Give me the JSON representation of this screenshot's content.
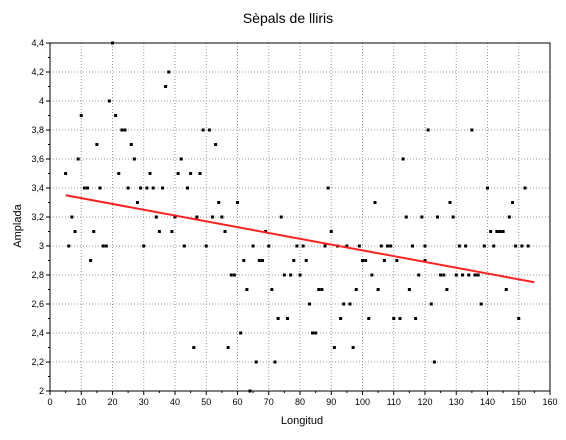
{
  "chart_data": {
    "type": "scatter",
    "title": "Sèpals de lliris",
    "xlabel": "Longitud",
    "ylabel": "Amplada",
    "xlim": [
      0,
      160
    ],
    "ylim": [
      2,
      4.4
    ],
    "x_ticks": [
      0,
      10,
      20,
      30,
      40,
      50,
      60,
      70,
      80,
      90,
      100,
      110,
      120,
      130,
      140,
      150,
      160
    ],
    "x_tick_labels": [
      "0",
      "10",
      "20",
      "30",
      "40",
      "50",
      "60",
      "70",
      "80",
      "90",
      "100",
      "110",
      "120",
      "130",
      "140",
      "150",
      "160"
    ],
    "y_ticks": [
      2,
      2.2,
      2.4,
      2.6,
      2.8,
      3,
      3.2,
      3.4,
      3.6,
      3.8,
      4,
      4.2,
      4.4
    ],
    "y_tick_labels": [
      "2",
      "2,2",
      "2,4",
      "2,6",
      "2,8",
      "3",
      "3,2",
      "3,4",
      "3,6",
      "3,8",
      "4",
      "4,2",
      "4,4"
    ],
    "grid": true,
    "point_color": "#000000",
    "trend_color": "#ff2020",
    "trendline": {
      "x": [
        5,
        155
      ],
      "y": [
        3.35,
        2.75
      ]
    },
    "points": [
      [
        5,
        3.5
      ],
      [
        6,
        3.0
      ],
      [
        7,
        3.2
      ],
      [
        8,
        3.1
      ],
      [
        9,
        3.6
      ],
      [
        10,
        3.9
      ],
      [
        11,
        3.4
      ],
      [
        12,
        3.4
      ],
      [
        13,
        2.9
      ],
      [
        14,
        3.1
      ],
      [
        15,
        3.7
      ],
      [
        16,
        3.4
      ],
      [
        17,
        3.0
      ],
      [
        18,
        3.0
      ],
      [
        19,
        4.0
      ],
      [
        20,
        4.4
      ],
      [
        21,
        3.9
      ],
      [
        22,
        3.5
      ],
      [
        23,
        3.8
      ],
      [
        24,
        3.8
      ],
      [
        25,
        3.4
      ],
      [
        26,
        3.7
      ],
      [
        27,
        3.6
      ],
      [
        28,
        3.3
      ],
      [
        29,
        3.4
      ],
      [
        30,
        3.0
      ],
      [
        31,
        3.4
      ],
      [
        32,
        3.5
      ],
      [
        33,
        3.4
      ],
      [
        34,
        3.2
      ],
      [
        35,
        3.1
      ],
      [
        36,
        3.4
      ],
      [
        37,
        4.1
      ],
      [
        38,
        4.2
      ],
      [
        39,
        3.1
      ],
      [
        40,
        3.2
      ],
      [
        41,
        3.5
      ],
      [
        42,
        3.6
      ],
      [
        43,
        3.0
      ],
      [
        44,
        3.4
      ],
      [
        45,
        3.5
      ],
      [
        46,
        2.3
      ],
      [
        47,
        3.2
      ],
      [
        48,
        3.5
      ],
      [
        49,
        3.8
      ],
      [
        50,
        3.0
      ],
      [
        51,
        3.8
      ],
      [
        52,
        3.2
      ],
      [
        53,
        3.7
      ],
      [
        54,
        3.3
      ],
      [
        55,
        3.2
      ],
      [
        56,
        3.1
      ],
      [
        57,
        2.3
      ],
      [
        58,
        2.8
      ],
      [
        59,
        2.8
      ],
      [
        60,
        3.3
      ],
      [
        61,
        2.4
      ],
      [
        62,
        2.9
      ],
      [
        63,
        2.7
      ],
      [
        64,
        2.0
      ],
      [
        65,
        3.0
      ],
      [
        66,
        2.2
      ],
      [
        67,
        2.9
      ],
      [
        68,
        2.9
      ],
      [
        69,
        3.1
      ],
      [
        70,
        3.0
      ],
      [
        71,
        2.7
      ],
      [
        72,
        2.2
      ],
      [
        73,
        2.5
      ],
      [
        74,
        3.2
      ],
      [
        75,
        2.8
      ],
      [
        76,
        2.5
      ],
      [
        77,
        2.8
      ],
      [
        78,
        2.9
      ],
      [
        79,
        3.0
      ],
      [
        80,
        2.8
      ],
      [
        81,
        3.0
      ],
      [
        82,
        2.9
      ],
      [
        83,
        2.6
      ],
      [
        84,
        2.4
      ],
      [
        85,
        2.4
      ],
      [
        86,
        2.7
      ],
      [
        87,
        2.7
      ],
      [
        88,
        3.0
      ],
      [
        89,
        3.4
      ],
      [
        90,
        3.1
      ],
      [
        91,
        2.3
      ],
      [
        92,
        3.0
      ],
      [
        93,
        2.5
      ],
      [
        94,
        2.6
      ],
      [
        95,
        3.0
      ],
      [
        96,
        2.6
      ],
      [
        97,
        2.3
      ],
      [
        98,
        2.7
      ],
      [
        99,
        3.0
      ],
      [
        100,
        2.9
      ],
      [
        101,
        2.9
      ],
      [
        102,
        2.5
      ],
      [
        103,
        2.8
      ],
      [
        104,
        3.3
      ],
      [
        105,
        2.7
      ],
      [
        106,
        3.0
      ],
      [
        107,
        2.9
      ],
      [
        108,
        3.0
      ],
      [
        109,
        3.0
      ],
      [
        110,
        2.5
      ],
      [
        111,
        2.9
      ],
      [
        112,
        2.5
      ],
      [
        113,
        3.6
      ],
      [
        114,
        3.2
      ],
      [
        115,
        2.7
      ],
      [
        116,
        3.0
      ],
      [
        117,
        2.5
      ],
      [
        118,
        2.8
      ],
      [
        119,
        3.2
      ],
      [
        120,
        3.0
      ],
      [
        121,
        3.8
      ],
      [
        122,
        2.6
      ],
      [
        123,
        2.2
      ],
      [
        124,
        3.2
      ],
      [
        125,
        2.8
      ],
      [
        126,
        2.8
      ],
      [
        127,
        2.7
      ],
      [
        128,
        3.3
      ],
      [
        129,
        3.2
      ],
      [
        130,
        2.8
      ],
      [
        131,
        3.0
      ],
      [
        132,
        2.8
      ],
      [
        133,
        3.0
      ],
      [
        134,
        2.8
      ],
      [
        135,
        3.8
      ],
      [
        136,
        2.8
      ],
      [
        137,
        2.8
      ],
      [
        138,
        2.6
      ],
      [
        139,
        3.0
      ],
      [
        140,
        3.4
      ],
      [
        141,
        3.1
      ],
      [
        142,
        3.0
      ],
      [
        143,
        3.1
      ],
      [
        144,
        3.1
      ],
      [
        145,
        3.1
      ],
      [
        146,
        2.7
      ],
      [
        147,
        3.2
      ],
      [
        148,
        3.3
      ],
      [
        149,
        3.0
      ],
      [
        150,
        2.5
      ],
      [
        151,
        3.0
      ],
      [
        152,
        3.4
      ],
      [
        153,
        3.0
      ],
      [
        120,
        2.9
      ]
    ]
  }
}
